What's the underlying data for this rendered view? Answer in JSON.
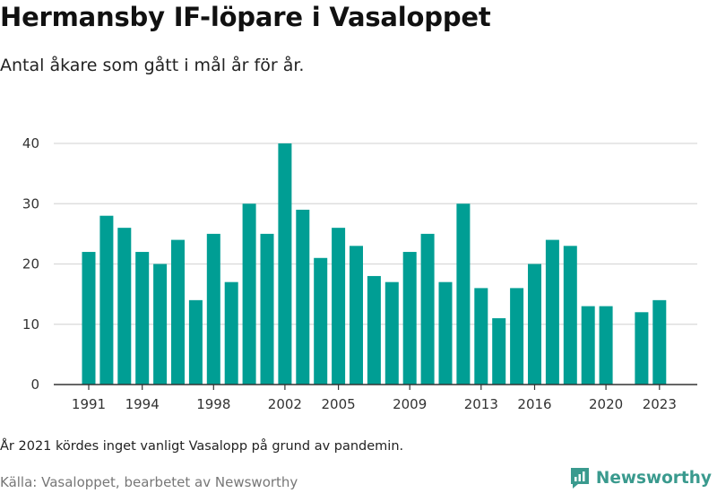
{
  "title": "Hermansby IF-löpare i Vasaloppet",
  "subtitle": "Antal åkare som gått i mål år för år.",
  "footnote": "År 2021 kördes inget vanligt Vasalopp på grund av pandemin.",
  "source": "Källa: Vasaloppet, bearbetet av Newsworthy",
  "brand": "Newsworthy",
  "colors": {
    "bar": "#009e94",
    "grid": "#d9d9d9",
    "axis": "#333333",
    "brand": "#3a9a8e"
  },
  "chart_data": {
    "type": "bar",
    "x": [
      1991,
      1992,
      1993,
      1994,
      1995,
      1996,
      1997,
      1998,
      1999,
      2000,
      2001,
      2002,
      2003,
      2004,
      2005,
      2006,
      2007,
      2008,
      2009,
      2010,
      2011,
      2012,
      2013,
      2014,
      2015,
      2016,
      2017,
      2018,
      2019,
      2020,
      2021,
      2022,
      2023
    ],
    "values": [
      22,
      28,
      26,
      22,
      20,
      24,
      14,
      25,
      17,
      30,
      25,
      40,
      29,
      21,
      26,
      23,
      18,
      17,
      22,
      25,
      17,
      30,
      16,
      11,
      16,
      20,
      24,
      23,
      13,
      13,
      null,
      12,
      14
    ],
    "x_tick_labels": [
      "1991",
      "1994",
      "1998",
      "2002",
      "2005",
      "2009",
      "2013",
      "2016",
      "2020",
      "2023"
    ],
    "y_ticks": [
      0,
      10,
      20,
      30,
      40
    ],
    "ylim": [
      0,
      40
    ],
    "grid": true
  }
}
